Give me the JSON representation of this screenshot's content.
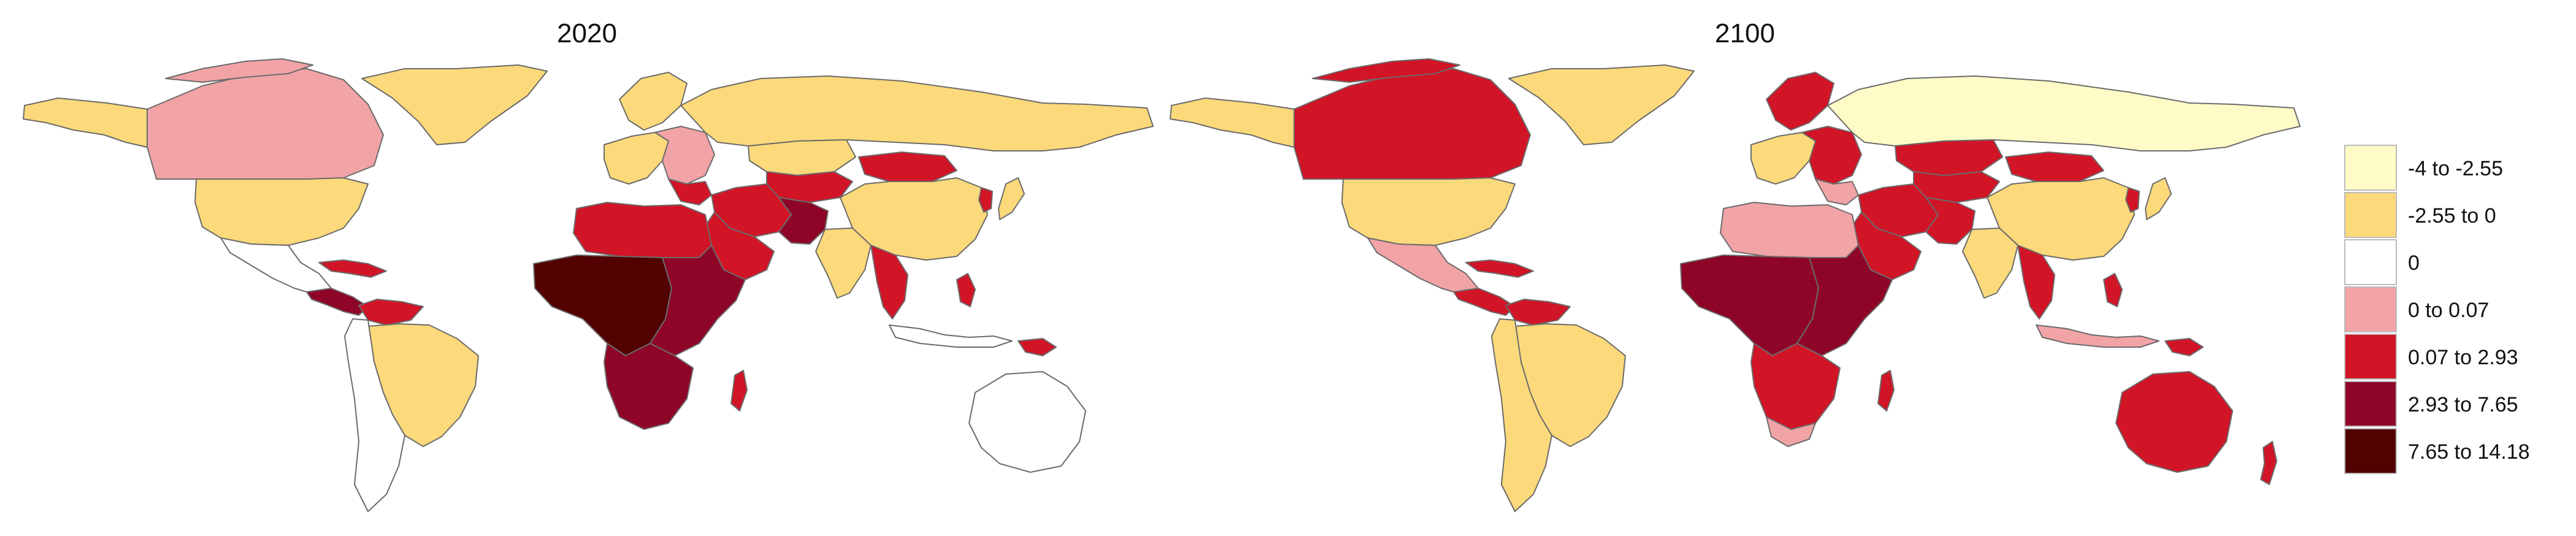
{
  "panels": [
    {
      "title": "2020"
    },
    {
      "title": "2100"
    }
  ],
  "legend": {
    "items": [
      {
        "label": "-4 to -2.55",
        "color": "#FFFBC7"
      },
      {
        "label": "-2.55 to 0",
        "color": "#FCD97A"
      },
      {
        "label": "0",
        "color": "#FFFFFF"
      },
      {
        "label": "0 to 0.07",
        "color": "#F1A3A6"
      },
      {
        "label": "0.07 to 2.93",
        "color": "#D21427"
      },
      {
        "label": "2.93 to 7.65",
        "color": "#8E0528"
      },
      {
        "label": "7.65 to 14.18",
        "color": "#520000"
      }
    ]
  },
  "colors": {
    "border": "#6b6b6b"
  }
}
